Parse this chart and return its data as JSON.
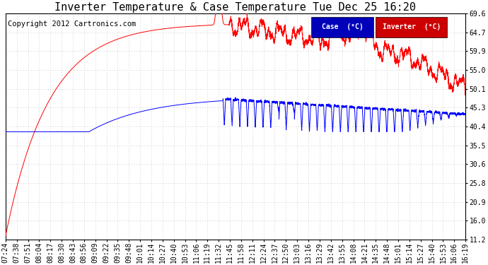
{
  "title": "Inverter Temperature & Case Temperature Tue Dec 25 16:20",
  "copyright": "Copyright 2012 Cartronics.com",
  "yticks": [
    11.2,
    16.0,
    20.9,
    25.8,
    30.6,
    35.5,
    40.4,
    45.3,
    50.1,
    55.0,
    59.9,
    64.7,
    69.6
  ],
  "xtick_labels": [
    "07:24",
    "07:38",
    "07:51",
    "08:04",
    "08:17",
    "08:30",
    "08:43",
    "08:56",
    "09:09",
    "09:22",
    "09:35",
    "09:48",
    "10:01",
    "10:14",
    "10:27",
    "10:40",
    "10:53",
    "11:06",
    "11:19",
    "11:32",
    "11:45",
    "11:58",
    "12:11",
    "12:24",
    "12:37",
    "12:50",
    "13:03",
    "13:16",
    "13:29",
    "13:42",
    "13:55",
    "14:08",
    "14:21",
    "14:35",
    "14:48",
    "15:01",
    "15:14",
    "15:27",
    "15:40",
    "15:53",
    "16:06",
    "16:19"
  ],
  "legend_case_label": "Case  (°C)",
  "legend_inverter_label": "Inverter  (°C)",
  "case_color": "#0000ff",
  "inverter_color": "#ff0000",
  "legend_case_bg": "#0000bb",
  "legend_inverter_bg": "#cc0000",
  "bg_color": "#ffffff",
  "grid_color": "#cccccc",
  "title_fontsize": 11,
  "copyright_fontsize": 7.5,
  "tick_fontsize": 7,
  "ymin": 11.2,
  "ymax": 69.6,
  "figwidth": 6.9,
  "figheight": 3.75,
  "dpi": 100
}
